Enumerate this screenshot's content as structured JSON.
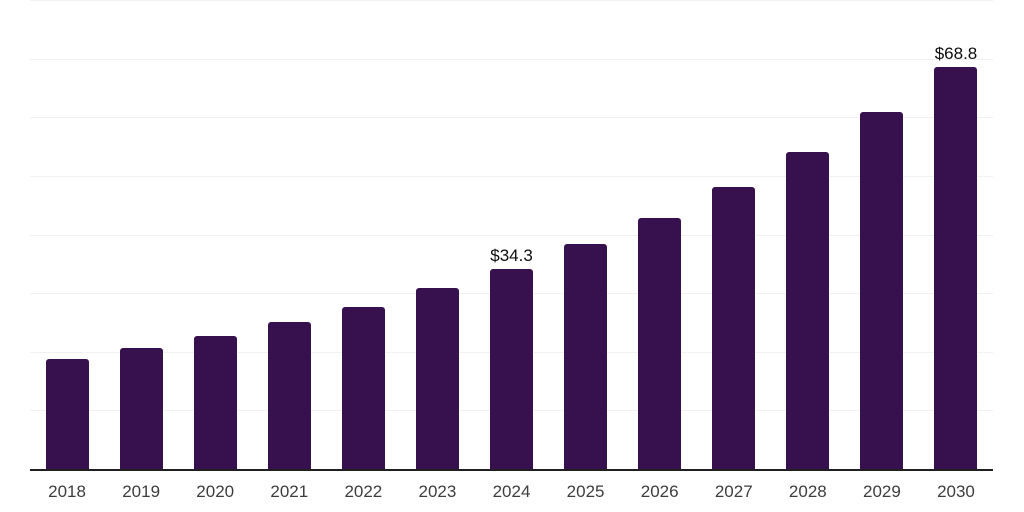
{
  "chart_data": {
    "type": "bar",
    "title": "",
    "xlabel": "",
    "ylabel": "",
    "categories": [
      "2018",
      "2019",
      "2020",
      "2021",
      "2022",
      "2023",
      "2024",
      "2025",
      "2026",
      "2027",
      "2028",
      "2029",
      "2030"
    ],
    "values": [
      19.0,
      20.8,
      22.8,
      25.2,
      27.8,
      31.1,
      34.3,
      38.6,
      43.0,
      48.2,
      54.2,
      61.1,
      68.8
    ],
    "bar_labels": [
      "",
      "",
      "",
      "",
      "",
      "",
      "$34.3",
      "",
      "",
      "",
      "",
      "",
      "$68.8"
    ],
    "ylim": [
      0,
      80
    ],
    "gridline_step": 10,
    "grid": true,
    "legend": false,
    "y_tick_labels_shown": false,
    "colors": {
      "bar": "#36114d",
      "grid": "#f1f1f1",
      "axis": "#202020",
      "tick_label": "#3d3d3d",
      "data_label": "#0d0d0d",
      "background": "#ffffff"
    }
  }
}
